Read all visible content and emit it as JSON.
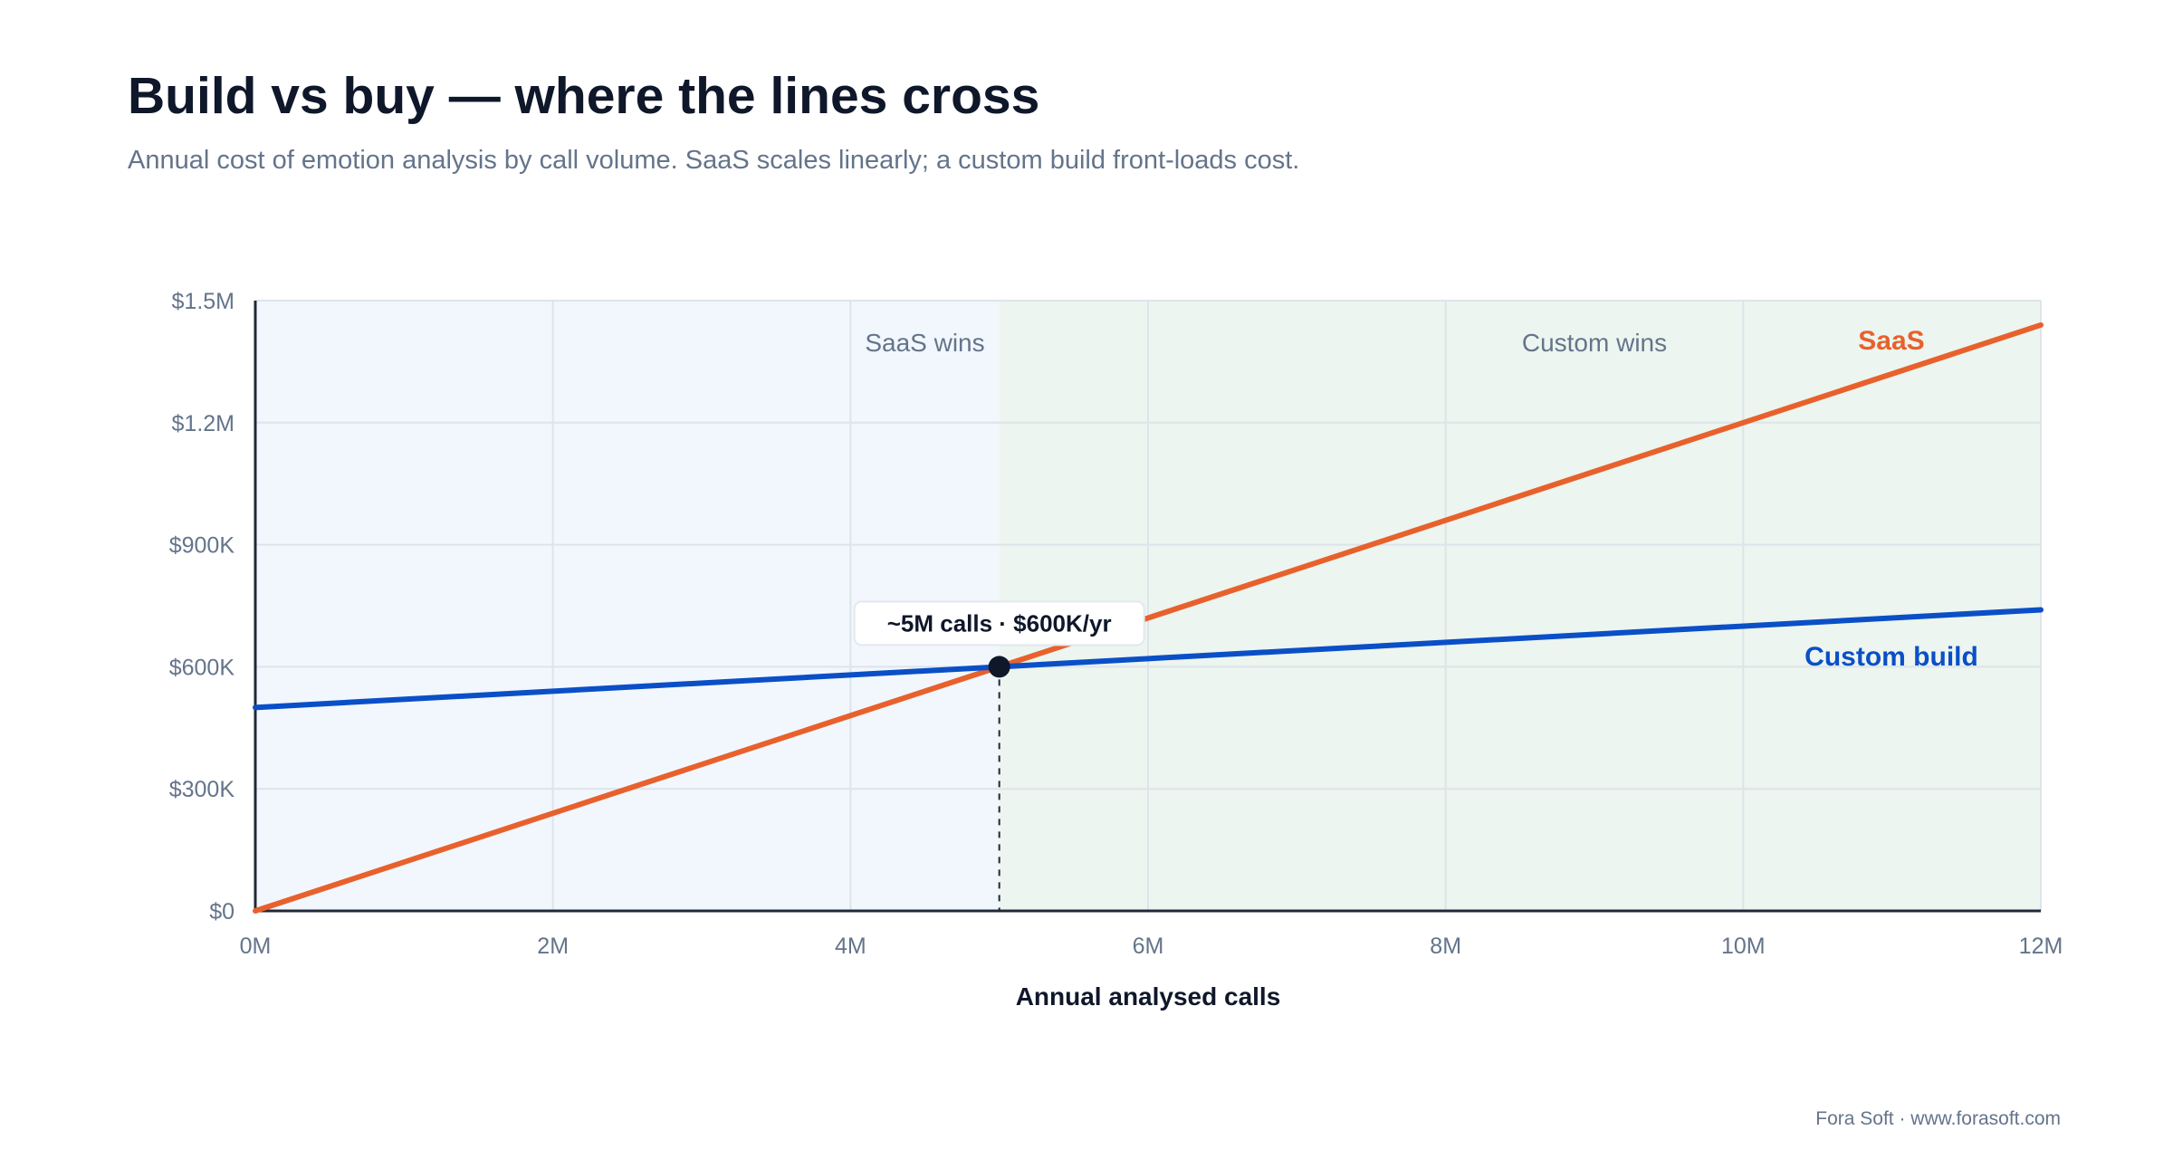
{
  "title": "Build vs buy — where the lines cross",
  "subtitle": "Annual cost of emotion analysis by call volume. SaaS scales linearly; a custom build front-loads cost.",
  "footer": "Fora Soft · www.forasoft.com",
  "chart_data": {
    "type": "line",
    "xlabel": "Annual analysed calls",
    "ylabel": "",
    "xlim": [
      0,
      12
    ],
    "ylim": [
      0,
      1500
    ],
    "x_ticks": [
      0,
      2,
      4,
      6,
      8,
      10,
      12
    ],
    "x_tick_labels": [
      "0M",
      "2M",
      "4M",
      "6M",
      "8M",
      "10M",
      "12M"
    ],
    "y_ticks": [
      0,
      300,
      600,
      900,
      1200,
      1500
    ],
    "y_tick_labels": [
      "$0",
      "$300K",
      "$600K",
      "$900K",
      "$1.2M",
      "$1.5M"
    ],
    "grid": true,
    "series": [
      {
        "name": "SaaS",
        "color": "#e8612c",
        "x": [
          0,
          12
        ],
        "y": [
          0,
          1440
        ]
      },
      {
        "name": "Custom build",
        "color": "#0a4fc7",
        "x": [
          0,
          12
        ],
        "y": [
          500,
          740
        ]
      }
    ],
    "regions": [
      {
        "label": "SaaS wins",
        "x": [
          0,
          5
        ],
        "color": "#f2f7fd"
      },
      {
        "label": "Custom wins",
        "x": [
          5,
          12
        ],
        "color": "#ecf5ef"
      }
    ],
    "crossover": {
      "x": 5,
      "y": 600,
      "label": "~5M calls · $600K/yr"
    }
  }
}
